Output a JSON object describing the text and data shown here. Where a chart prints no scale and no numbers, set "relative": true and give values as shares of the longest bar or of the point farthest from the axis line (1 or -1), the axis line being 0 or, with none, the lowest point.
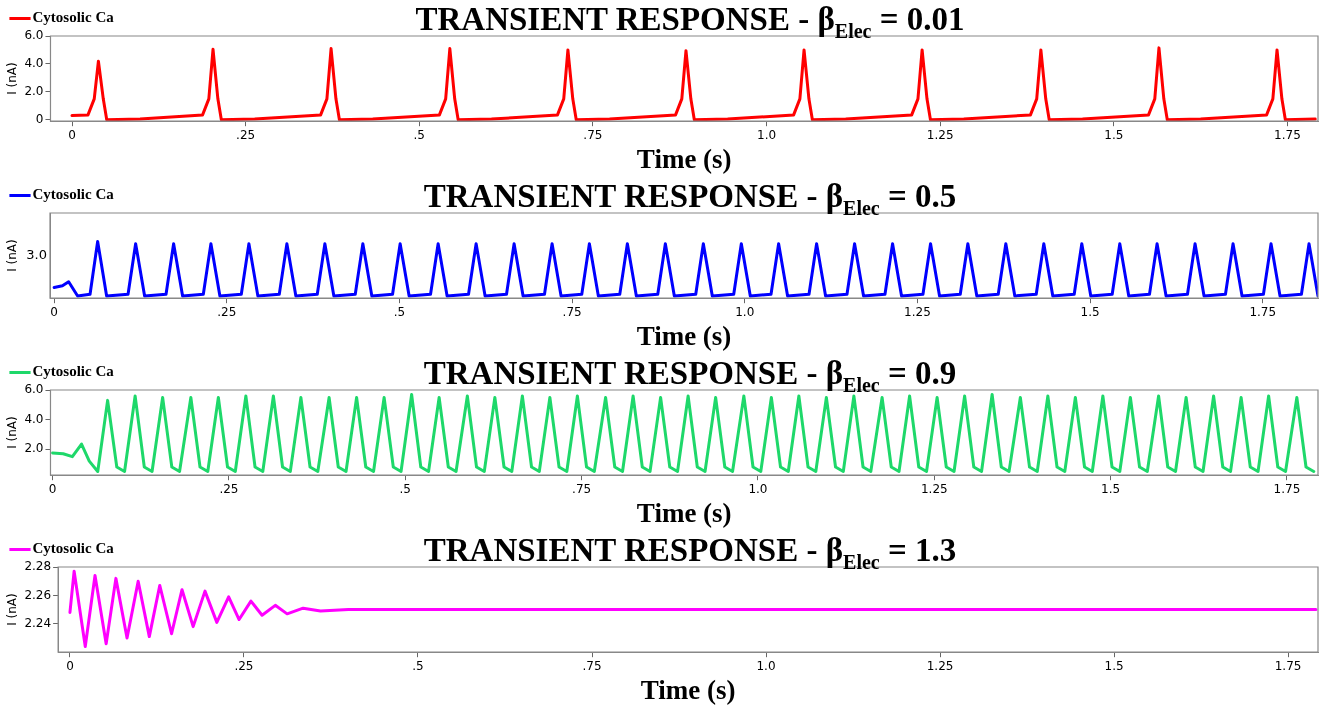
{
  "chart_data": [
    {
      "type": "line",
      "title": "TRANSIENT RESPONSE - β$_{Elec}$ = 0.01",
      "xlabel": "Time (s)",
      "ylabel": "I (nA)",
      "legend": "top left",
      "xlim": [
        -0.031,
        1.794
      ],
      "ylim": [
        -0.1,
        6
      ],
      "xticks": [
        0,
        {
          "value": 0.25,
          "label": ".25"
        },
        {
          "value": 0.5,
          "label": ".5"
        },
        {
          "value": 0.75,
          "label": ".75"
        },
        {
          "value": 1,
          "label": "1.0"
        },
        1.25,
        1.5,
        1.75
      ],
      "yticks": [
        0,
        {
          "value": 2,
          "label": "2.0"
        },
        {
          "value": 4,
          "label": "4.0"
        },
        {
          "value": 6,
          "label": "6.0"
        }
      ],
      "x": [
        0,
        0.023,
        0.032,
        0.038,
        0.045,
        0.05,
        0.098,
        0.188,
        0.197,
        0.203,
        0.21,
        0.215,
        0.263,
        0.358,
        0.367,
        0.373,
        0.38,
        0.385,
        0.433,
        0.529,
        0.538,
        0.544,
        0.551,
        0.556,
        0.604,
        0.699,
        0.708,
        0.714,
        0.721,
        0.726,
        0.774,
        0.869,
        0.878,
        0.884,
        0.891,
        0.896,
        0.944,
        1.039,
        1.048,
        1.054,
        1.061,
        1.066,
        1.114,
        1.209,
        1.218,
        1.224,
        1.231,
        1.236,
        1.284,
        1.38,
        1.389,
        1.395,
        1.402,
        1.407,
        1.455,
        1.55,
        1.559,
        1.565,
        1.572,
        1.577,
        1.625,
        1.72,
        1.729,
        1.735,
        1.742,
        1.747,
        1.79
      ],
      "series": [
        {
          "name": "Cytosolic Ca",
          "color": "#ff0000",
          "values": [
            0.3,
            0.35,
            1.5,
            4.2,
            1.5,
            0,
            0.05,
            0.35,
            1.5,
            5.05,
            1.5,
            0,
            0.05,
            0.35,
            1.5,
            5.1,
            1.5,
            0,
            0.05,
            0.35,
            1.5,
            5.1,
            1.5,
            0,
            0.05,
            0.35,
            1.5,
            5,
            1.5,
            0,
            0.05,
            0.35,
            1.5,
            4.95,
            1.5,
            0,
            0.05,
            0.35,
            1.5,
            5,
            1.5,
            0,
            0.05,
            0.35,
            1.5,
            5,
            1.5,
            0,
            0.05,
            0.35,
            1.5,
            5,
            1.5,
            0,
            0.05,
            0.35,
            1.5,
            5.15,
            1.5,
            0,
            0.05,
            0.35,
            1.5,
            5,
            1.5,
            0,
            0.05
          ]
        }
      ]
    },
    {
      "type": "line",
      "title": "TRANSIENT RESPONSE - β$_{Elec}$ = 0.5",
      "xlabel": "Time (s)",
      "ylabel": "I (nA)",
      "legend": "top left",
      "relative": true,
      "xlim": [
        -0.006,
        1.83
      ],
      "xticks": [
        0,
        {
          "value": 0.25,
          "label": ".25"
        },
        {
          "value": 0.5,
          "label": ".5"
        },
        {
          "value": 0.75,
          "label": ".75"
        },
        {
          "value": 1,
          "label": "1.0"
        },
        1.25,
        1.5,
        1.75
      ],
      "annotations": [
        "3.0"
      ],
      "x": [
        0,
        0.012,
        0.021,
        0.034,
        0.052,
        0.063,
        0.076,
        0.107,
        0.118,
        0.131,
        0.162,
        0.173,
        0.186,
        0.216,
        0.227,
        0.24,
        0.271,
        0.282,
        0.295,
        0.326,
        0.337,
        0.35,
        0.381,
        0.392,
        0.405,
        0.436,
        0.447,
        0.46,
        0.49,
        0.501,
        0.514,
        0.545,
        0.556,
        0.569,
        0.6,
        0.611,
        0.624,
        0.655,
        0.666,
        0.679,
        0.71,
        0.721,
        0.734,
        0.764,
        0.775,
        0.788,
        0.819,
        0.83,
        0.843,
        0.874,
        0.885,
        0.898,
        0.929,
        0.94,
        0.953,
        0.984,
        0.995,
        1.008,
        1.038,
        1.049,
        1.062,
        1.093,
        1.104,
        1.117,
        1.148,
        1.159,
        1.172,
        1.203,
        1.214,
        1.227,
        1.258,
        1.269,
        1.282,
        1.312,
        1.323,
        1.336,
        1.367,
        1.378,
        1.391,
        1.422,
        1.433,
        1.446,
        1.477,
        1.488,
        1.501,
        1.532,
        1.543,
        1.556,
        1.586,
        1.597,
        1.61,
        1.641,
        1.652,
        1.665,
        1.696,
        1.707,
        1.72,
        1.751,
        1.762,
        1.775,
        1.806,
        1.817,
        1.83
      ],
      "series": [
        {
          "name": "Cytosolic Ca",
          "color": "#0000ff",
          "values": [
            0.19,
            0.22,
            0.29,
            0.04,
            0.07,
            1,
            0.04,
            0.07,
            0.96,
            0.04,
            0.07,
            0.96,
            0.04,
            0.07,
            0.96,
            0.04,
            0.07,
            0.96,
            0.04,
            0.07,
            0.96,
            0.04,
            0.07,
            0.96,
            0.04,
            0.07,
            0.96,
            0.04,
            0.07,
            0.96,
            0.04,
            0.07,
            0.96,
            0.04,
            0.07,
            0.96,
            0.04,
            0.07,
            0.96,
            0.04,
            0.07,
            0.96,
            0.04,
            0.07,
            0.96,
            0.04,
            0.07,
            0.96,
            0.04,
            0.07,
            0.96,
            0.04,
            0.07,
            0.96,
            0.04,
            0.07,
            0.96,
            0.04,
            0.07,
            0.96,
            0.04,
            0.07,
            0.96,
            0.04,
            0.07,
            0.96,
            0.04,
            0.07,
            0.96,
            0.04,
            0.07,
            0.96,
            0.04,
            0.07,
            0.96,
            0.04,
            0.07,
            0.96,
            0.04,
            0.07,
            0.96,
            0.04,
            0.07,
            0.96,
            0.04,
            0.07,
            0.96,
            0.04,
            0.07,
            0.96,
            0.04,
            0.07,
            0.96,
            0.04,
            0.07,
            0.96,
            0.04,
            0.07,
            0.96,
            0.04,
            0.07,
            0.96,
            0.04
          ]
        }
      ]
    },
    {
      "type": "line",
      "title": "TRANSIENT RESPONSE - β$_{Elec}$ = 0.9",
      "xlabel": "Time (s)",
      "ylabel": "I (nA)",
      "legend": "top left",
      "xlim": [
        -0.003,
        1.794
      ],
      "ylim": [
        0.25,
        6
      ],
      "xticks": [
        0,
        {
          "value": 0.25,
          "label": ".25"
        },
        {
          "value": 0.5,
          "label": ".5"
        },
        {
          "value": 0.75,
          "label": ".75"
        },
        {
          "value": 1,
          "label": "1.0"
        },
        1.25,
        1.5,
        1.75
      ],
      "yticks": [
        {
          "value": 2,
          "label": "2.0"
        },
        {
          "value": 4,
          "label": "4.0"
        },
        {
          "value": 6,
          "label": "6.0"
        }
      ],
      "x": [
        0,
        0.015,
        0.028,
        0.041,
        0.052,
        0.064,
        0.078,
        0.091,
        0.102,
        0.117,
        0.13,
        0.141,
        0.156,
        0.169,
        0.18,
        0.196,
        0.209,
        0.22,
        0.235,
        0.248,
        0.259,
        0.274,
        0.287,
        0.298,
        0.313,
        0.326,
        0.337,
        0.352,
        0.365,
        0.376,
        0.392,
        0.405,
        0.416,
        0.431,
        0.444,
        0.455,
        0.47,
        0.483,
        0.494,
        0.509,
        0.522,
        0.533,
        0.548,
        0.561,
        0.572,
        0.588,
        0.601,
        0.612,
        0.627,
        0.64,
        0.651,
        0.666,
        0.679,
        0.69,
        0.705,
        0.718,
        0.729,
        0.744,
        0.757,
        0.768,
        0.784,
        0.797,
        0.808,
        0.823,
        0.836,
        0.847,
        0.862,
        0.875,
        0.886,
        0.901,
        0.914,
        0.925,
        0.94,
        0.953,
        0.964,
        0.98,
        0.993,
        1.004,
        1.019,
        1.032,
        1.043,
        1.058,
        1.071,
        1.082,
        1.097,
        1.11,
        1.121,
        1.136,
        1.149,
        1.16,
        1.176,
        1.189,
        1.2,
        1.215,
        1.228,
        1.239,
        1.254,
        1.267,
        1.278,
        1.293,
        1.306,
        1.317,
        1.332,
        1.345,
        1.356,
        1.372,
        1.385,
        1.396,
        1.411,
        1.424,
        1.435,
        1.45,
        1.463,
        1.474,
        1.489,
        1.502,
        1.513,
        1.528,
        1.541,
        1.552,
        1.568,
        1.581,
        1.592,
        1.607,
        1.62,
        1.631,
        1.646,
        1.659,
        1.67,
        1.685,
        1.698,
        1.709,
        1.724,
        1.737,
        1.748,
        1.764,
        1.777,
        1.788
      ],
      "series": [
        {
          "name": "Cytosolic Ca",
          "color": "#1ed86a",
          "values": [
            1.75,
            1.7,
            1.5,
            2.35,
            1.2,
            0.5,
            5.3,
            0.8,
            0.5,
            5.6,
            0.8,
            0.5,
            5.5,
            0.8,
            0.5,
            5.5,
            0.8,
            0.5,
            5.5,
            0.8,
            0.5,
            5.6,
            0.8,
            0.5,
            5.6,
            0.8,
            0.5,
            5.5,
            0.8,
            0.5,
            5.5,
            0.8,
            0.5,
            5.5,
            0.8,
            0.5,
            5.5,
            0.8,
            0.5,
            5.7,
            0.8,
            0.5,
            5.5,
            0.8,
            0.5,
            5.6,
            0.8,
            0.5,
            5.5,
            0.8,
            0.5,
            5.6,
            0.8,
            0.5,
            5.5,
            0.8,
            0.5,
            5.6,
            0.8,
            0.5,
            5.5,
            0.8,
            0.5,
            5.6,
            0.8,
            0.5,
            5.5,
            0.8,
            0.5,
            5.6,
            0.8,
            0.5,
            5.5,
            0.8,
            0.5,
            5.6,
            0.8,
            0.5,
            5.5,
            0.8,
            0.5,
            5.6,
            0.8,
            0.5,
            5.5,
            0.8,
            0.5,
            5.6,
            0.8,
            0.5,
            5.5,
            0.8,
            0.5,
            5.6,
            0.8,
            0.5,
            5.5,
            0.8,
            0.5,
            5.6,
            0.8,
            0.5,
            5.7,
            0.8,
            0.5,
            5.5,
            0.8,
            0.5,
            5.6,
            0.8,
            0.5,
            5.5,
            0.8,
            0.5,
            5.6,
            0.8,
            0.5,
            5.5,
            0.8,
            0.5,
            5.6,
            0.8,
            0.5,
            5.5,
            0.8,
            0.5,
            5.6,
            0.8,
            0.5,
            5.5,
            0.8,
            0.5,
            5.6,
            0.8,
            0.5,
            5.5,
            0.8,
            0.5
          ]
        }
      ]
    },
    {
      "type": "line",
      "title": "TRANSIENT RESPONSE - β$_{Elec}$ = 1.3",
      "xlabel": "Time (s)",
      "ylabel": "I (nA)",
      "legend": "top left",
      "xlim": [
        -0.017,
        1.793
      ],
      "ylim": [
        2.22,
        2.28
      ],
      "xticks": [
        0,
        {
          "value": 0.25,
          "label": ".25"
        },
        {
          "value": 0.5,
          "label": ".5"
        },
        {
          "value": 0.75,
          "label": ".75"
        },
        {
          "value": 1,
          "label": "1.0"
        },
        1.25,
        1.5,
        1.75
      ],
      "yticks": [
        2.24,
        2.26,
        2.28
      ],
      "x": [
        0,
        0.006,
        0.022,
        0.036,
        0.052,
        0.066,
        0.082,
        0.098,
        0.114,
        0.129,
        0.146,
        0.161,
        0.177,
        0.194,
        0.211,
        0.228,
        0.243,
        0.26,
        0.276,
        0.295,
        0.312,
        0.335,
        0.36,
        0.4,
        1.79
      ],
      "series": [
        {
          "name": "Cytosolic Ca",
          "color": "#ff00ff",
          "values": [
            2.248,
            2.277,
            2.224,
            2.274,
            2.226,
            2.272,
            2.23,
            2.27,
            2.231,
            2.267,
            2.233,
            2.264,
            2.238,
            2.263,
            2.241,
            2.259,
            2.243,
            2.256,
            2.246,
            2.253,
            2.247,
            2.251,
            2.249,
            2.25,
            2.25
          ]
        }
      ]
    }
  ]
}
